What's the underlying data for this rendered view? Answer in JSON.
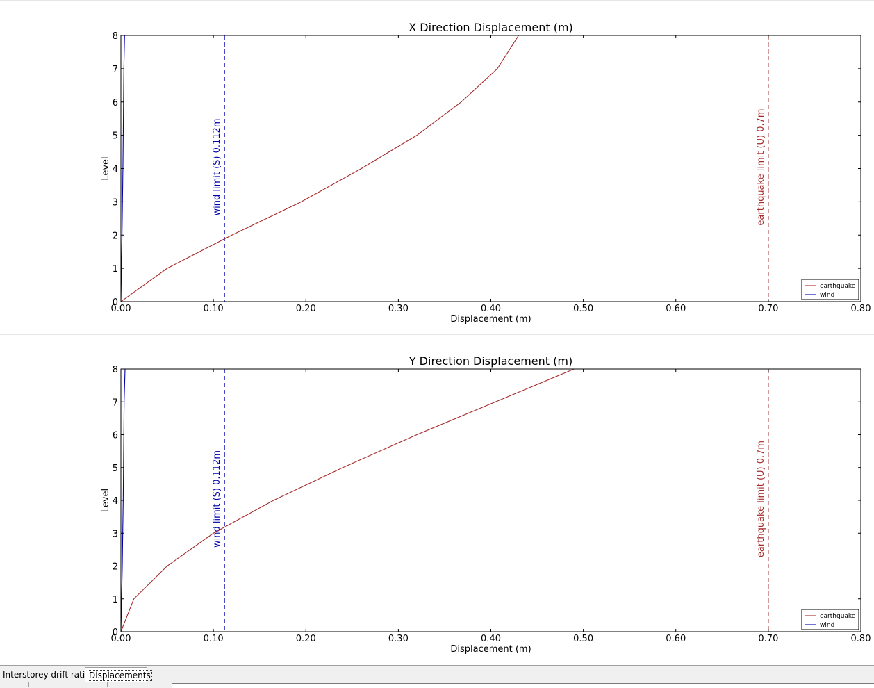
{
  "tabs": [
    {
      "label": "Interstorey drift ratios",
      "active": false
    },
    {
      "label": "Displacements",
      "active": true
    }
  ],
  "chart_data": [
    {
      "type": "line",
      "title": "X Direction Displacement (m)",
      "xlabel": "Displacement (m)",
      "ylabel": "Level",
      "xlim": [
        0,
        0.8
      ],
      "ylim": [
        0,
        8
      ],
      "xticks": [
        "0.00",
        "0.10",
        "0.20",
        "0.30",
        "0.40",
        "0.50",
        "0.60",
        "0.70",
        "0.80"
      ],
      "yticks": [
        "0",
        "1",
        "2",
        "3",
        "4",
        "5",
        "6",
        "7",
        "8"
      ],
      "grid": false,
      "legend_position": "bottom-right",
      "series": [
        {
          "name": "earthquake",
          "color": "#a52a2a",
          "x": [
            0,
            0.05,
            0.12,
            0.195,
            0.26,
            0.32,
            0.368,
            0.407,
            0.43
          ],
          "y": [
            0,
            1,
            2,
            3,
            4,
            5,
            6,
            7,
            8
          ]
        },
        {
          "name": "wind",
          "color": "#0000b0",
          "x": [
            0,
            0.0012,
            0.0022,
            0.0032,
            0.004
          ],
          "y": [
            0,
            2,
            4,
            7,
            8
          ]
        }
      ],
      "reference_lines": [
        {
          "x": 0.112,
          "label": "wind limit (S) 0.112m",
          "color": "#0000b0",
          "style": "dashed"
        },
        {
          "x": 0.7,
          "label": "earthquake limit (U) 0.7m",
          "color": "#a52a2a",
          "style": "dashed"
        }
      ]
    },
    {
      "type": "line",
      "title": "Y Direction Displacement (m)",
      "xlabel": "Displacement (m)",
      "ylabel": "Level",
      "xlim": [
        0,
        0.8
      ],
      "ylim": [
        0,
        8
      ],
      "xticks": [
        "0.00",
        "0.10",
        "0.20",
        "0.30",
        "0.40",
        "0.50",
        "0.60",
        "0.70",
        "0.80"
      ],
      "yticks": [
        "0",
        "1",
        "2",
        "3",
        "4",
        "5",
        "6",
        "7",
        "8"
      ],
      "grid": false,
      "legend_position": "bottom-right",
      "series": [
        {
          "name": "earthquake",
          "color": "#a52a2a",
          "x": [
            0,
            0.014,
            0.05,
            0.1,
            0.165,
            0.24,
            0.32,
            0.405,
            0.49
          ],
          "y": [
            0,
            1,
            2,
            3,
            4,
            5,
            6,
            7,
            8
          ]
        },
        {
          "name": "wind",
          "color": "#0000b0",
          "x": [
            0,
            0.0015,
            0.0025,
            0.0035,
            0.0045
          ],
          "y": [
            0,
            2,
            4,
            7,
            8
          ]
        }
      ],
      "reference_lines": [
        {
          "x": 0.112,
          "label": "wind limit (S) 0.112m",
          "color": "#0000b0",
          "style": "dashed"
        },
        {
          "x": 0.7,
          "label": "earthquake limit (U) 0.7m",
          "color": "#a52a2a",
          "style": "dashed"
        }
      ]
    }
  ]
}
